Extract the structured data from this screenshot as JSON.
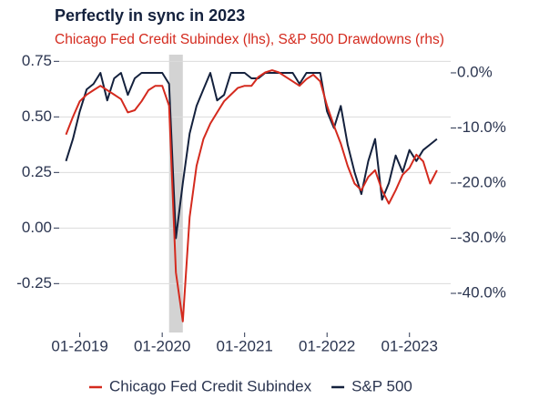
{
  "chart_data": {
    "type": "line",
    "title": "Perfectly in sync in 2023",
    "subtitle": "Chicago Fed Credit Subindex (lhs), S&P 500 Drawdowns (rhs)",
    "x": [
      "2018-11",
      "2018-12",
      "2019-01",
      "2019-02",
      "2019-03",
      "2019-04",
      "2019-05",
      "2019-06",
      "2019-07",
      "2019-08",
      "2019-09",
      "2019-10",
      "2019-11",
      "2019-12",
      "2020-01",
      "2020-02",
      "2020-03",
      "2020-04",
      "2020-05",
      "2020-06",
      "2020-07",
      "2020-08",
      "2020-09",
      "2020-10",
      "2020-11",
      "2020-12",
      "2021-01",
      "2021-02",
      "2021-03",
      "2021-04",
      "2021-05",
      "2021-06",
      "2021-07",
      "2021-08",
      "2021-09",
      "2021-10",
      "2021-11",
      "2021-12",
      "2022-01",
      "2022-02",
      "2022-03",
      "2022-04",
      "2022-05",
      "2022-06",
      "2022-07",
      "2022-08",
      "2022-09",
      "2022-10",
      "2022-11",
      "2022-12",
      "2023-01",
      "2023-02",
      "2023-03",
      "2023-04",
      "2023-05"
    ],
    "series": [
      {
        "name": "Chicago Fed Credit Subindex",
        "color": "#d42a1e",
        "axis": "y",
        "values": [
          0.42,
          0.5,
          0.57,
          0.6,
          0.62,
          0.64,
          0.62,
          0.6,
          0.58,
          0.52,
          0.53,
          0.57,
          0.62,
          0.64,
          0.64,
          0.55,
          -0.2,
          -0.42,
          0.05,
          0.28,
          0.4,
          0.47,
          0.52,
          0.57,
          0.6,
          0.63,
          0.64,
          0.64,
          0.68,
          0.7,
          0.71,
          0.7,
          0.68,
          0.66,
          0.64,
          0.67,
          0.69,
          0.66,
          0.55,
          0.46,
          0.38,
          0.28,
          0.2,
          0.17,
          0.23,
          0.26,
          0.17,
          0.11,
          0.17,
          0.24,
          0.27,
          0.33,
          0.3,
          0.2,
          0.26
        ]
      },
      {
        "name": "S&P 500",
        "color": "#14213d",
        "axis": "y2",
        "values": [
          -16,
          -12,
          -7,
          -3,
          -2,
          0,
          -5,
          -1,
          0,
          -4,
          -1,
          0,
          0,
          0,
          0,
          -2,
          -30,
          -20,
          -11,
          -6,
          -3,
          0,
          -5,
          -4,
          0,
          0,
          0,
          -1,
          -1,
          0,
          0,
          0,
          0,
          0,
          -2,
          0,
          0,
          0,
          -7,
          -10,
          -6,
          -13,
          -18,
          -22,
          -16,
          -12,
          -23,
          -20,
          -15,
          -18,
          -14,
          -16,
          -14,
          -13,
          -12
        ]
      }
    ],
    "xlim": [
      "2018-10",
      "2023-07"
    ],
    "xticks": [
      {
        "value": "2019-01",
        "label": "01-2019"
      },
      {
        "value": "2020-01",
        "label": "01-2020"
      },
      {
        "value": "2021-01",
        "label": "01-2021"
      },
      {
        "value": "2022-01",
        "label": "01-2022"
      },
      {
        "value": "2023-01",
        "label": "01-2023"
      }
    ],
    "ylim": [
      -0.47,
      0.78
    ],
    "yticks": [
      0.75,
      {
        "value": 0.5,
        "label": "0.50"
      },
      0.25,
      {
        "value": 0,
        "label": "0.00"
      },
      -0.25
    ],
    "y2lim": [
      -47.1,
      3.3
    ],
    "y2ticks": [
      {
        "value": 0,
        "label": "0.0%"
      },
      {
        "value": -10,
        "label": "-10.0%"
      },
      {
        "value": -20,
        "label": "-20.0%"
      },
      {
        "value": -30,
        "label": "-30.0%"
      },
      {
        "value": -40,
        "label": "-40.0%"
      }
    ],
    "shaded": [
      "2020-02",
      "2020-04"
    ],
    "grid": true,
    "legend": "bottom"
  }
}
